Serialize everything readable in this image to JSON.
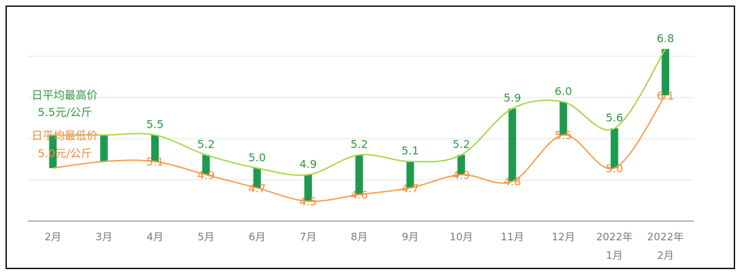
{
  "chart_data": {
    "type": "line",
    "categories": [
      "2月",
      "3月",
      "4月",
      "5月",
      "6月",
      "7月",
      "8月",
      "9月",
      "10月",
      "11月",
      "12月",
      "2022年\n1月",
      "2022年\n2月"
    ],
    "series": [
      {
        "name": "日平均最高价",
        "values": [
          5.5,
          5.5,
          5.5,
          5.2,
          5.0,
          4.9,
          5.2,
          5.1,
          5.2,
          5.9,
          6.0,
          5.6,
          6.8
        ],
        "labels": [
          "",
          "",
          "5.5",
          "5.2",
          "5.0",
          "4.9",
          "5.2",
          "5.1",
          "5.2",
          "5.9",
          "6.0",
          "5.6",
          "6.8"
        ]
      },
      {
        "name": "日平均最低价",
        "values": [
          5.0,
          5.1,
          5.1,
          4.9,
          4.7,
          4.5,
          4.6,
          4.7,
          4.9,
          4.8,
          5.5,
          5.0,
          6.1
        ],
        "labels": [
          "",
          "",
          "5.1",
          "4.9",
          "4.7",
          "4.5",
          "4.6",
          "4.7",
          "4.9",
          "4.8",
          "5.5",
          "5.0",
          "6.1"
        ]
      }
    ],
    "ylim": [
      4.2,
      7.0
    ],
    "grid": true,
    "colors": {
      "high": "#a6d84a",
      "low": "#f5a14d",
      "bar": "#1e9a4e",
      "grid": "#e3e3e3",
      "axis": "#9b9b9b"
    }
  },
  "legend": {
    "high": {
      "title": "日平均最高价",
      "value": "5.5元/公斤"
    },
    "low": {
      "title": "日平均最低价",
      "value": "5.0元/公斤"
    }
  }
}
